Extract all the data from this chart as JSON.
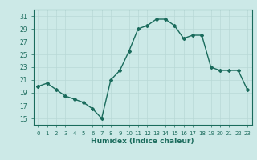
{
  "x": [
    0,
    1,
    2,
    3,
    4,
    5,
    6,
    7,
    8,
    9,
    10,
    11,
    12,
    13,
    14,
    15,
    16,
    17,
    18,
    19,
    20,
    21,
    22,
    23
  ],
  "y": [
    20,
    20.5,
    19.5,
    18.5,
    18,
    17.5,
    16.5,
    15,
    21,
    22.5,
    25.5,
    29,
    29.5,
    30.5,
    30.5,
    29.5,
    27.5,
    28,
    28,
    23,
    22.5,
    22.5,
    22.5,
    19.5
  ],
  "line_color": "#1a6b5c",
  "bg_color": "#cce9e7",
  "grid_color": "#b8d8d6",
  "xlabel": "Humidex (Indice chaleur)",
  "ylim": [
    14,
    32
  ],
  "yticks": [
    15,
    17,
    19,
    21,
    23,
    25,
    27,
    29,
    31
  ],
  "xlim": [
    -0.5,
    23.5
  ],
  "xtick_labels": [
    "0",
    "1",
    "2",
    "3",
    "4",
    "5",
    "6",
    "7",
    "8",
    "9",
    "10",
    "11",
    "12",
    "13",
    "14",
    "15",
    "16",
    "17",
    "18",
    "19",
    "20",
    "21",
    "22",
    "23"
  ],
  "font_color": "#1a6b5c",
  "marker": "D",
  "markersize": 2.0,
  "linewidth": 1.0
}
